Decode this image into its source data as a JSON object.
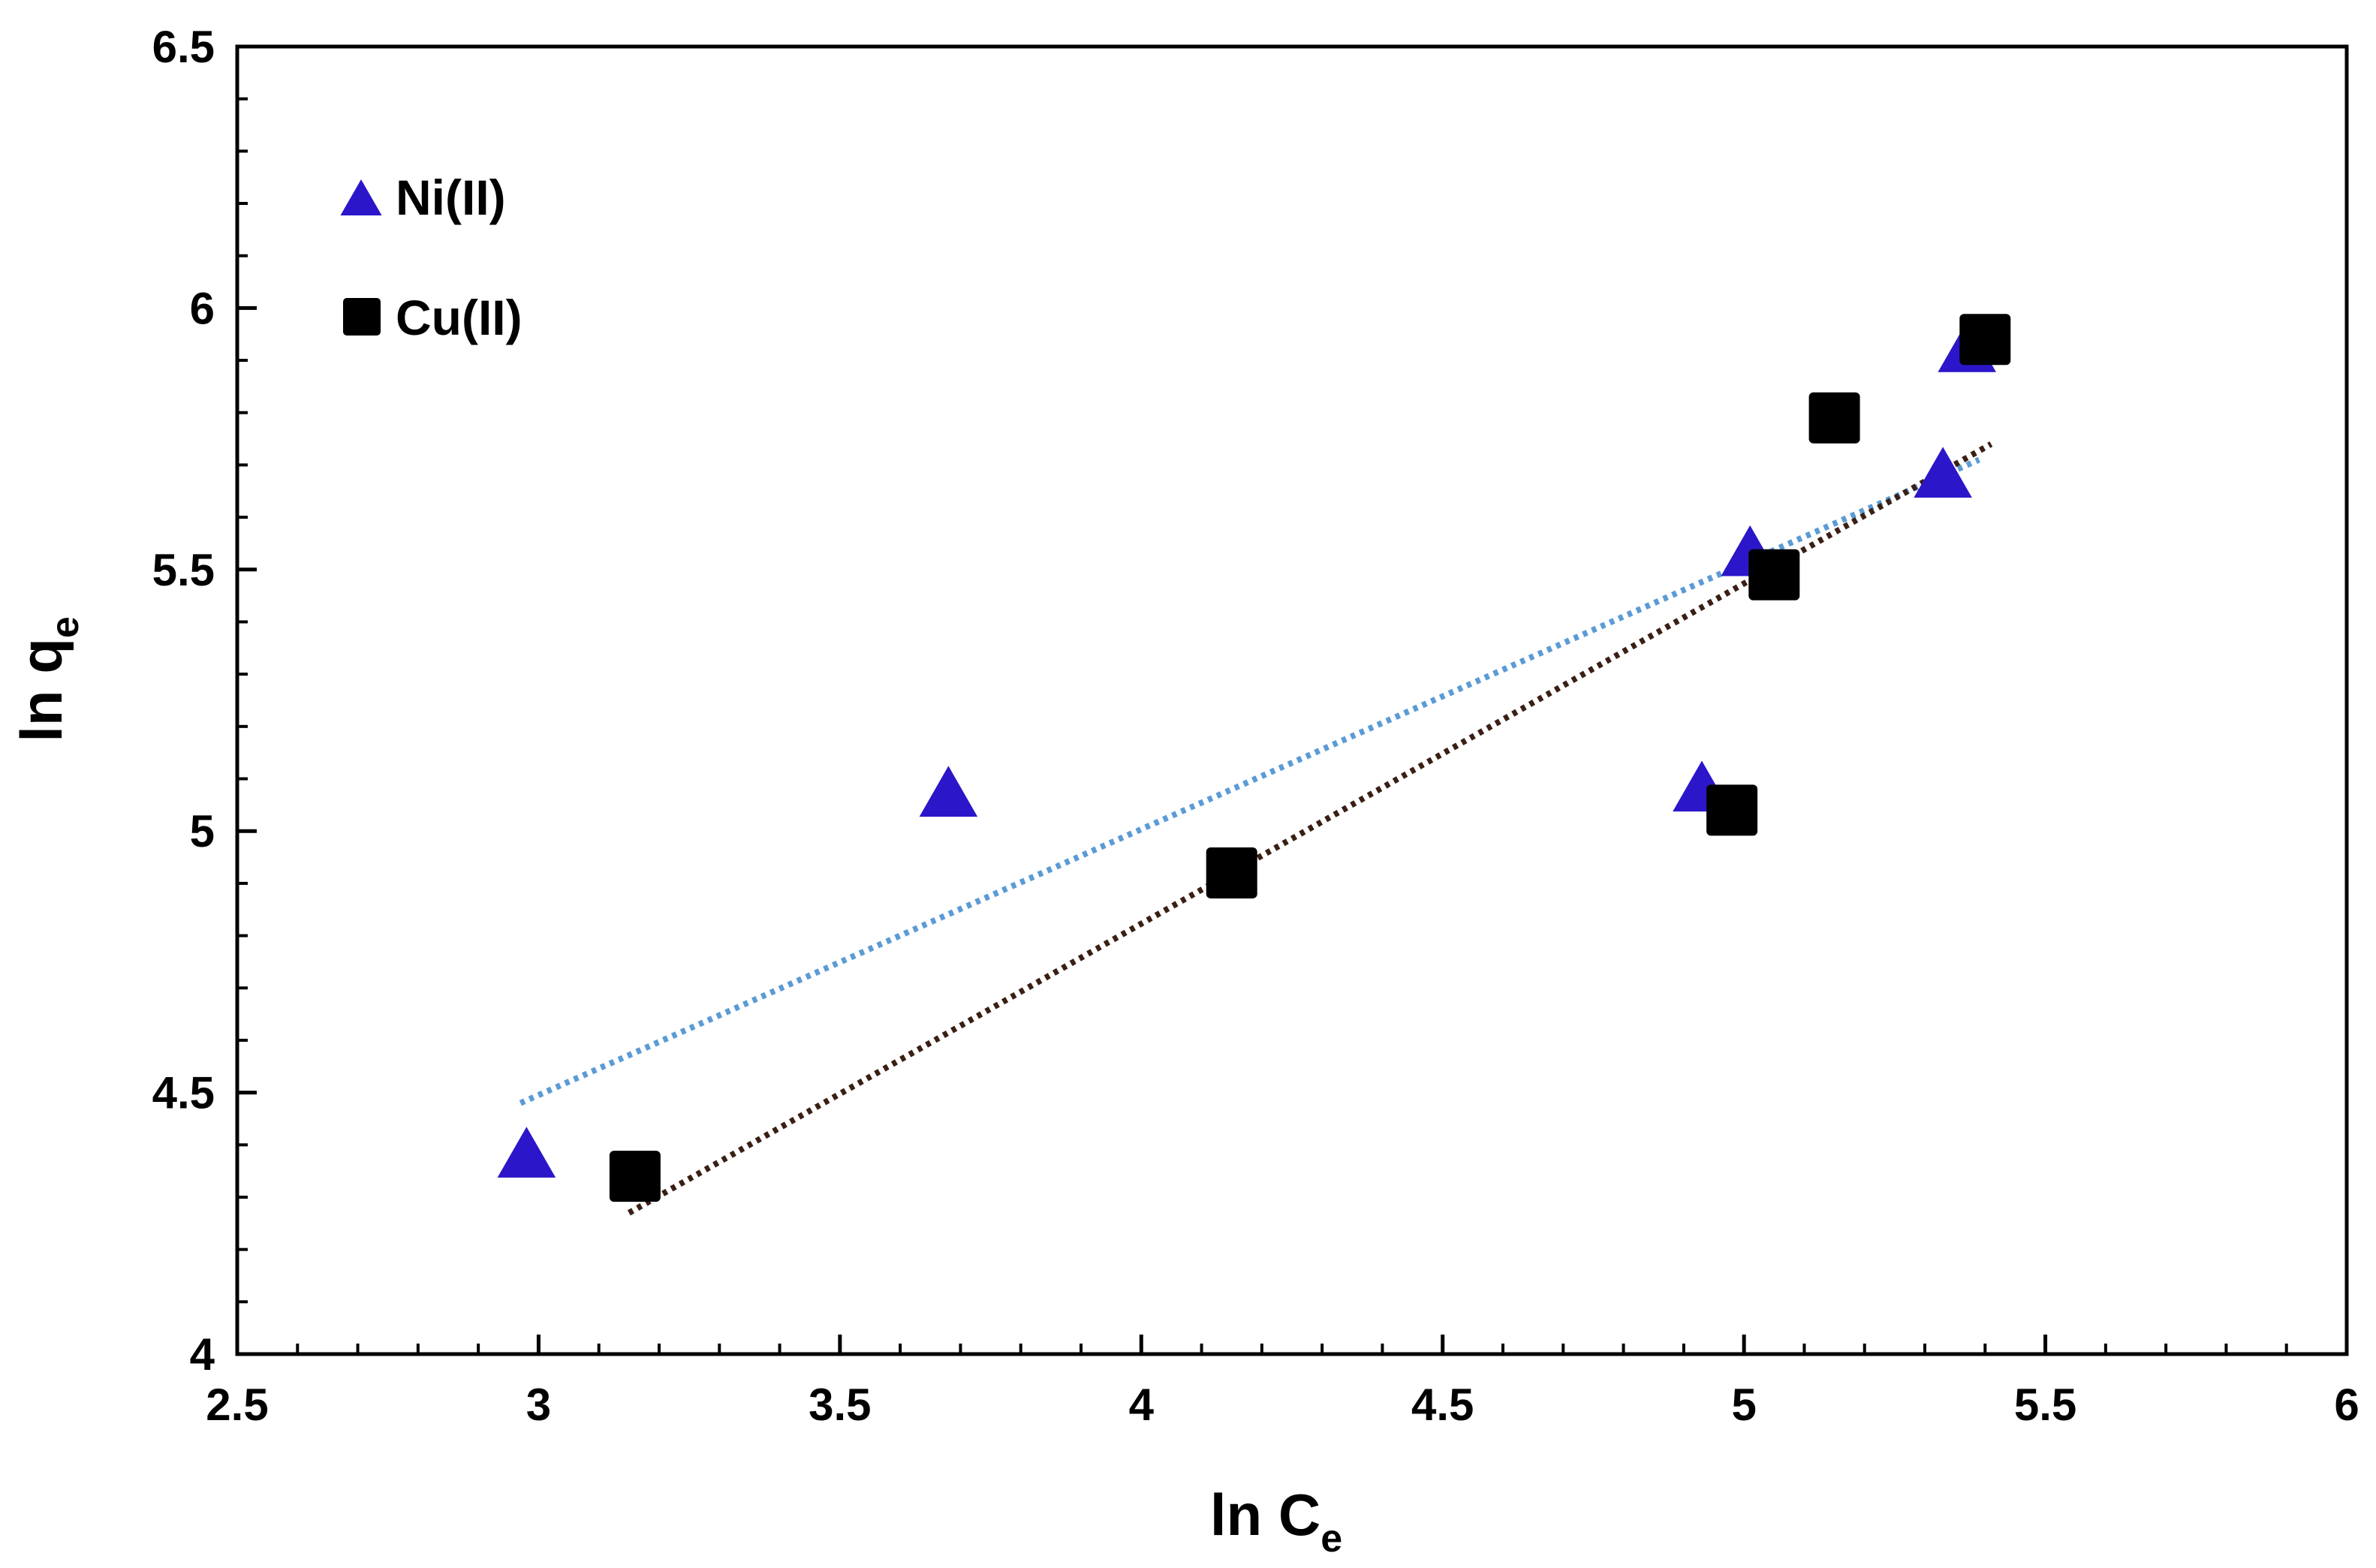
{
  "chart_data": {
    "type": "scatter",
    "title": "",
    "xlabel": {
      "main": "ln C",
      "sub": "e"
    },
    "ylabel": {
      "main": "ln q",
      "sub": "e"
    },
    "xlim": [
      2.5,
      6
    ],
    "ylim": [
      4,
      6.5
    ],
    "xticks": [
      2.5,
      3,
      3.5,
      4,
      4.5,
      5,
      5.5,
      6
    ],
    "xtick_labels": [
      "2.5",
      "3",
      "3.5",
      "4",
      "4.5",
      "5",
      "5.5",
      "6"
    ],
    "yticks": [
      4,
      4.5,
      5,
      5.5,
      6,
      6.5
    ],
    "ytick_labels": [
      "4",
      "4.5",
      "5",
      "5.5",
      "6",
      "6.5"
    ],
    "x_minor_step": 0.1,
    "y_minor_step": 0.1,
    "grid": false,
    "legend_position": "top-left",
    "series": [
      {
        "name": "Ni(II)",
        "marker": "triangle",
        "color": "#2b16c9",
        "points": [
          {
            "x": 2.98,
            "y": 4.38
          },
          {
            "x": 3.68,
            "y": 5.07
          },
          {
            "x": 4.93,
            "y": 5.08
          },
          {
            "x": 5.01,
            "y": 5.53
          },
          {
            "x": 5.33,
            "y": 5.68
          },
          {
            "x": 5.37,
            "y": 5.92
          }
        ],
        "trendline": {
          "color": "#5b9bd5",
          "x": [
            2.97,
            5.39
          ],
          "y": [
            4.48,
            5.71
          ]
        }
      },
      {
        "name": "Cu(II)",
        "marker": "square",
        "color": "#000000",
        "points": [
          {
            "x": 3.16,
            "y": 4.34
          },
          {
            "x": 4.15,
            "y": 4.92
          },
          {
            "x": 4.98,
            "y": 5.04
          },
          {
            "x": 5.05,
            "y": 5.49
          },
          {
            "x": 5.15,
            "y": 5.79
          },
          {
            "x": 5.4,
            "y": 5.94
          }
        ],
        "trendline": {
          "color": "#3a1f14",
          "x": [
            3.15,
            5.41
          ],
          "y": [
            4.27,
            5.74
          ]
        }
      }
    ]
  }
}
